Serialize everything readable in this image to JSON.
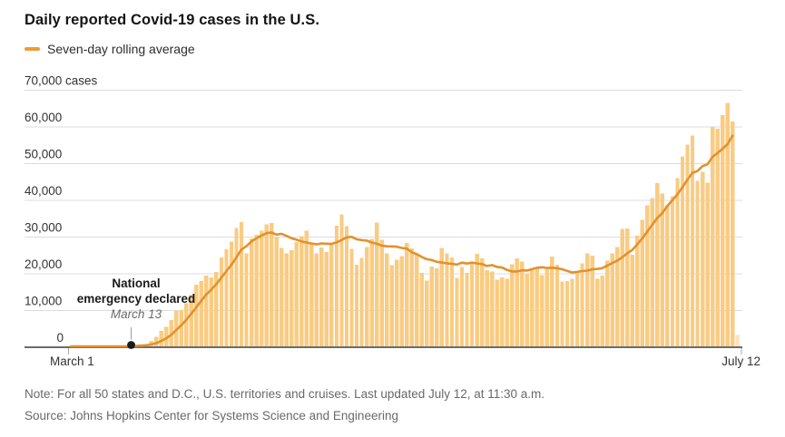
{
  "header": {
    "title": "Daily reported Covid-19 cases in the U.S.",
    "legend_label": "Seven-day rolling average"
  },
  "annotation": {
    "line1": "National",
    "line2": "emergency declared",
    "line3": "March 13",
    "day_index": 12
  },
  "footer": {
    "note": "Note: For all 50 states and D.C., U.S. territories and cruises. Last updated July 12, at 11:30 a.m.",
    "source": "Source: Johns Hopkins Center for Systems Science and Engineering"
  },
  "colors": {
    "bar": "#FACB82",
    "bar_partial": "#FBE3BE",
    "line": "#E2912D",
    "legend_swatch": "#F09A33",
    "grid": "#DCDCDC",
    "axis": "#6B6B6B",
    "tick": "#ABABAB",
    "annotation_tick": "#9B9B9B",
    "annotation_dot": "#1A1A1A",
    "title_text": "#141414",
    "footer_text": "#696969"
  },
  "chart_data": {
    "type": "bar+line",
    "title": "Daily reported Covid-19 cases in the U.S.",
    "unit": "cases",
    "x_start_label": "March 1",
    "x_end_label": "July 12",
    "x_tick_labels": [
      "March 1",
      "July 12"
    ],
    "y_tick_labels": [
      "0",
      "10,000",
      "20,000",
      "30,000",
      "40,000",
      "50,000",
      "60,000",
      "70,000 cases"
    ],
    "ylim": [
      0,
      70000
    ],
    "y_gridline_step": 10000,
    "grid": "horizontal-only",
    "legend_position": "top-left",
    "last_bar_partial": true,
    "daily_values": [
      30,
      20,
      25,
      35,
      55,
      75,
      100,
      120,
      170,
      270,
      330,
      420,
      550,
      680,
      730,
      860,
      1750,
      2800,
      4500,
      5600,
      7400,
      9900,
      10100,
      12000,
      14300,
      17000,
      18000,
      19500,
      19000,
      20500,
      24500,
      26700,
      28800,
      32500,
      34100,
      25500,
      29600,
      30600,
      31700,
      33500,
      33800,
      30000,
      27100,
      25500,
      26400,
      28700,
      30200,
      31700,
      28100,
      25600,
      27200,
      25900,
      28400,
      33100,
      36200,
      33000,
      26800,
      22500,
      24300,
      27300,
      29500,
      34000,
      29300,
      25500,
      22300,
      23800,
      24800,
      28400,
      26900,
      25600,
      20300,
      18100,
      22000,
      21500,
      27100,
      25500,
      24500,
      18900,
      21800,
      20300,
      23300,
      25400,
      24200,
      21000,
      20600,
      18400,
      19000,
      18700,
      22600,
      24200,
      23300,
      20000,
      21000,
      21700,
      19600,
      21200,
      24700,
      22500,
      17900,
      18000,
      18600,
      20700,
      22800,
      25600,
      25000,
      18600,
      19500,
      23600,
      25500,
      27300,
      32200,
      32400,
      25200,
      30400,
      34700,
      38600,
      40600,
      44700,
      41800,
      38700,
      41100,
      46000,
      52000,
      55200,
      57700,
      45300,
      47800,
      44800,
      60000,
      59500,
      63200,
      66600,
      61500,
      3300
    ],
    "series": [
      {
        "name": "Daily reported cases",
        "type": "bar",
        "values_ref": "daily_values"
      },
      {
        "name": "Seven-day rolling average",
        "type": "line",
        "window": 7,
        "derived_from": "daily_values",
        "excludes_final_partial_day": true
      }
    ]
  }
}
